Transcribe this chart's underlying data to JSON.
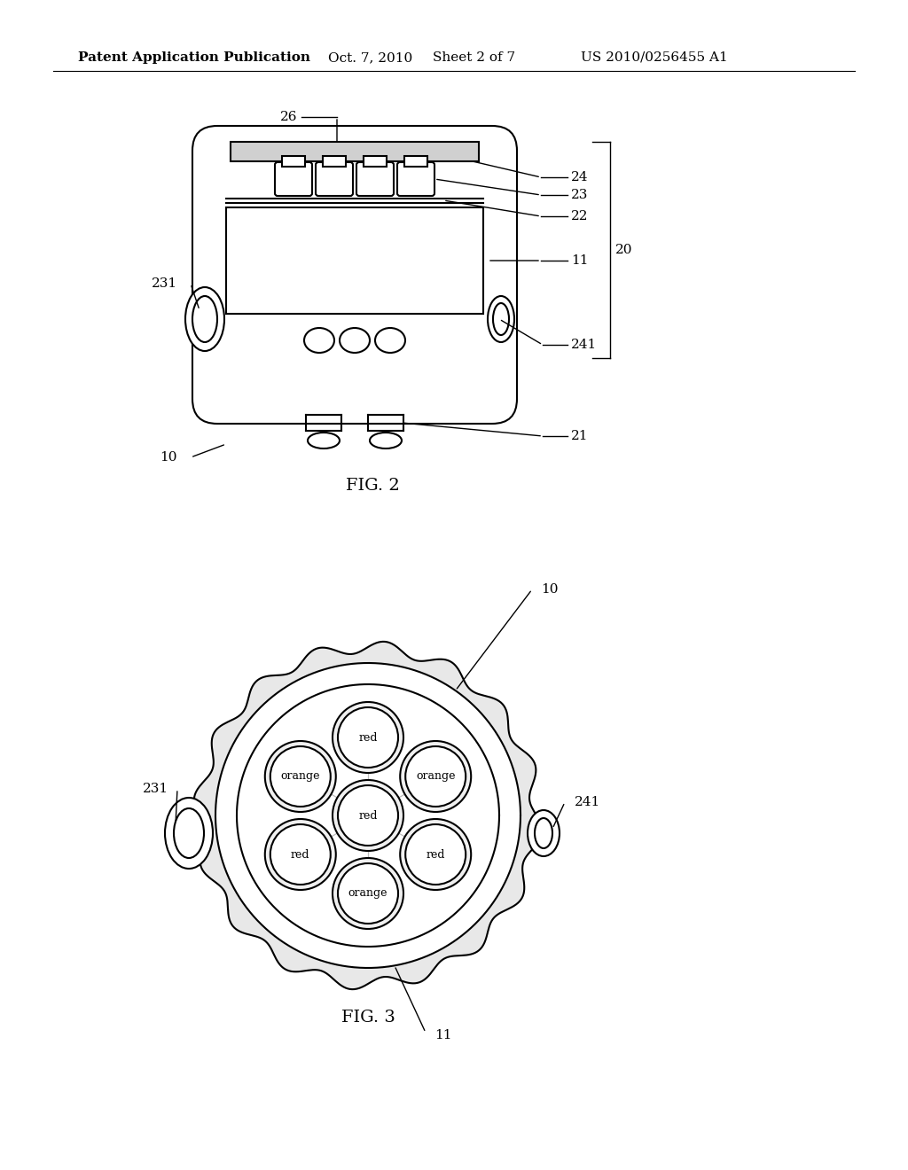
{
  "bg_color": "#ffffff",
  "header_text": "Patent Application Publication",
  "header_date": "Oct. 7, 2010",
  "header_sheet": "Sheet 2 of 7",
  "header_patent": "US 2010/0256455 A1",
  "fig2_label": "FIG. 2",
  "fig3_label": "FIG. 3",
  "line_color": "#000000"
}
